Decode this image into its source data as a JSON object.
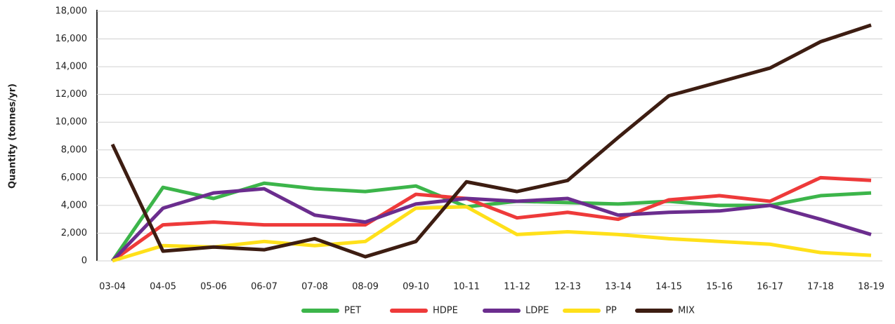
{
  "chart_data": {
    "type": "line",
    "y_label": "Quantity (tonnes/yr)",
    "categories": [
      "03-04",
      "04-05",
      "05-06",
      "06-07",
      "07-08",
      "08-09",
      "09-10",
      "10-11",
      "11-12",
      "12-13",
      "13-14",
      "14-15",
      "15-16",
      "16-17",
      "17-18",
      "18-19"
    ],
    "series": [
      {
        "name": "PET",
        "color": "#3cb54a",
        "values": [
          0,
          5300,
          4500,
          5600,
          5200,
          5000,
          5400,
          3900,
          4300,
          4200,
          4100,
          4300,
          4000,
          4000,
          4700,
          4900
        ]
      },
      {
        "name": "HDPE",
        "color": "#ee3a3a",
        "values": [
          0,
          2600,
          2800,
          2600,
          2600,
          2600,
          4800,
          4500,
          3100,
          3500,
          3000,
          4400,
          4700,
          4300,
          6000,
          5800
        ]
      },
      {
        "name": "LDPE",
        "color": "#6b2d8e",
        "values": [
          0,
          3800,
          4900,
          5200,
          3300,
          2800,
          4100,
          4500,
          4300,
          4500,
          3300,
          3500,
          3600,
          4000,
          3000,
          1900
        ]
      },
      {
        "name": "PP",
        "color": "#ffe01a",
        "values": [
          0,
          1100,
          1000,
          1400,
          1100,
          1400,
          3800,
          3900,
          1900,
          2100,
          1900,
          1600,
          1400,
          1200,
          600,
          400
        ]
      },
      {
        "name": "MIX",
        "color": "#3d1d12",
        "values": [
          8400,
          700,
          1000,
          800,
          1600,
          300,
          1400,
          5700,
          5000,
          5800,
          8900,
          11900,
          12900,
          13900,
          15800,
          17000
        ]
      }
    ],
    "ylim": [
      0,
      18000
    ],
    "yticks": [
      0,
      {
        "value": 2000,
        "label": "2,000"
      },
      {
        "value": 4000,
        "label": "4,000"
      },
      {
        "value": 6000,
        "label": "6,000"
      },
      {
        "value": 8000,
        "label": "8,000"
      },
      {
        "value": 10000,
        "label": "10,000"
      },
      {
        "value": 12000,
        "label": "12,000"
      },
      {
        "value": 14000,
        "label": "14,000"
      },
      {
        "value": 16000,
        "label": "16,000"
      },
      {
        "value": 18000,
        "label": "18,000"
      }
    ],
    "grid": true
  }
}
